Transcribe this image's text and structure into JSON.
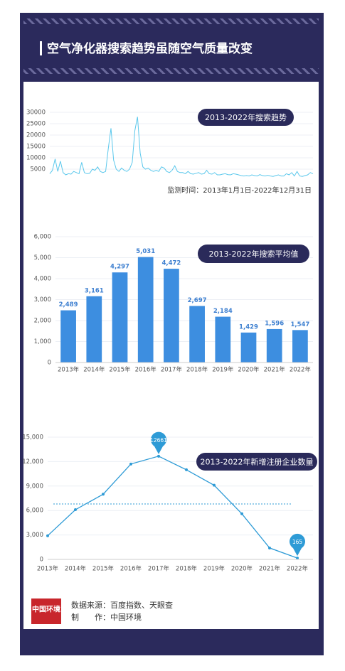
{
  "header": {
    "title": "空气净化器搜索趋势虽随空气质量改变"
  },
  "charts": [
    {
      "type": "line",
      "title": "2013-2022年搜索趋势",
      "subtitle": "监测时间：2013年1月1日-2022年12月31日",
      "color": "#5bc8ec",
      "values": [
        3000,
        4500,
        9500,
        4000,
        8500,
        3500,
        2500,
        3000,
        2800,
        4000,
        3500,
        3000,
        8000,
        3500,
        3000,
        3200,
        5000,
        4500,
        6000,
        4000,
        3500,
        4000,
        14000,
        23000,
        9000,
        5000,
        4000,
        5500,
        4500,
        4000,
        5000,
        8000,
        22000,
        28000,
        12000,
        6000,
        5000,
        5500,
        4500,
        4000,
        4500,
        4000,
        6000,
        5500,
        4000,
        3500,
        4500,
        6500,
        4000,
        3500,
        3500,
        3000,
        4000,
        3000,
        2800,
        3200,
        3500,
        2800,
        3000,
        4500,
        3000,
        2800,
        3500,
        2500,
        2500,
        2800,
        3000,
        2600,
        2500,
        3000,
        2800,
        2500,
        2200,
        2000,
        2200,
        2000,
        2500,
        2200,
        2000,
        2600,
        2200,
        2000,
        2300,
        2000,
        1800,
        2200,
        2500,
        2000,
        2000,
        3000,
        2500,
        3500,
        2000,
        4000,
        2000,
        1800,
        2200,
        2500,
        3500,
        3000
      ],
      "ylim": [
        0,
        30000
      ],
      "yticks": [
        5000,
        10000,
        15000,
        20000,
        25000,
        30000
      ],
      "grid": true
    },
    {
      "type": "bar",
      "title": "2013-2022年搜索平均值",
      "color": "#3d8ee0",
      "categories": [
        "2013年",
        "2014年",
        "2015年",
        "2016年",
        "2017年",
        "2018年",
        "2019年",
        "2020年",
        "2021年",
        "2022年"
      ],
      "values": [
        2489,
        3161,
        4297,
        5031,
        4472,
        2697,
        2184,
        1429,
        1596,
        1547
      ],
      "value_labels": [
        "2,489",
        "3,161",
        "4,297",
        "5,031",
        "4,472",
        "2,697",
        "2,184",
        "1,429",
        "1,596",
        "1,547"
      ],
      "ylim": [
        0,
        6000
      ],
      "yticks": [
        0,
        {
          "value": 1000,
          "label": "1,000"
        },
        {
          "value": 2000,
          "label": "2,000"
        },
        {
          "value": 3000,
          "label": "3,000"
        },
        {
          "value": 4000,
          "label": "4,000"
        },
        {
          "value": 5000,
          "label": "5,000"
        },
        {
          "value": 6000,
          "label": "6,000"
        }
      ],
      "grid": true
    },
    {
      "type": "line",
      "title": "2013-2022年新增注册企业数量",
      "color": "#2e9bd6",
      "categories": [
        "2013年",
        "2014年",
        "2015年",
        "2016年",
        "2017年",
        "2018年",
        "2019年",
        "2020年",
        "2021年",
        "2022年"
      ],
      "values": [
        2900,
        6100,
        8000,
        11700,
        12661,
        11000,
        9100,
        5600,
        1400,
        165
      ],
      "value_labels": [
        null,
        null,
        null,
        null,
        "12661",
        null,
        null,
        null,
        null,
        "165"
      ],
      "mean_line": 6800,
      "ylim": [
        0,
        15000
      ],
      "yticks": [
        0,
        {
          "value": 3000,
          "label": "3,000"
        },
        {
          "value": 6000,
          "label": "6,000"
        },
        {
          "value": 9000,
          "label": "9,000"
        },
        {
          "value": 12000,
          "label": "12,000"
        },
        {
          "value": 15000,
          "label": "15,000"
        }
      ],
      "grid": true
    }
  ],
  "footer": {
    "logo": "中国环境",
    "source": "数据来源：百度指数、天眼查",
    "maker": "制　　作：中国环境"
  }
}
